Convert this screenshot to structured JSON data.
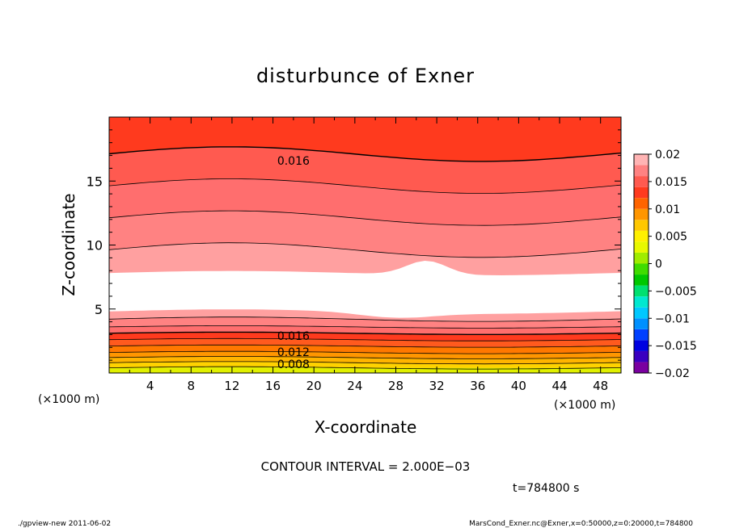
{
  "chart_data": {
    "type": "heatmap",
    "title": "disturbunce of Exner",
    "xlabel": "X-coordinate",
    "ylabel": "Z-coordinate",
    "x_unit_label_left": "(×1000 m)",
    "x_unit_label_right": "(×1000 m)",
    "xlim": [
      0,
      50
    ],
    "ylim": [
      0,
      20
    ],
    "x_ticks": [
      4,
      8,
      12,
      16,
      20,
      24,
      28,
      32,
      36,
      40,
      44,
      48
    ],
    "y_ticks": [
      5,
      10,
      15
    ],
    "contour_labels": [
      {
        "text": "0.016",
        "x": 18,
        "z": 16.6
      },
      {
        "text": "0.016",
        "x": 18,
        "z": 2.9
      },
      {
        "text": "0.012",
        "x": 18,
        "z": 1.65
      },
      {
        "text": "0.008",
        "x": 18,
        "z": 0.7
      }
    ],
    "colorbar": {
      "levels": [
        -0.02,
        -0.018,
        -0.016,
        -0.014,
        -0.012,
        -0.01,
        -0.008,
        -0.006,
        -0.004,
        -0.002,
        0,
        0.002,
        0.004,
        0.006,
        0.008,
        0.01,
        0.012,
        0.014,
        0.016,
        0.018,
        0.02
      ],
      "tick_labels": [
        "0.02",
        "0.015",
        "0.01",
        "0.005",
        "0",
        "−0.005",
        "−0.01",
        "−0.015",
        "−0.02"
      ],
      "colors": [
        "#7a00a0",
        "#3a00c0",
        "#0000e0",
        "#0040ff",
        "#0090ff",
        "#00c8ff",
        "#00e8d0",
        "#00e070",
        "#00c800",
        "#40dc00",
        "#a0ec00",
        "#e8f800",
        "#fff000",
        "#ffc800",
        "#ff9600",
        "#ff6400",
        "#ff3a1e",
        "#ff5a50",
        "#ff8282",
        "#ffb4b4"
      ]
    },
    "bands_from_top": [
      {
        "top": 20.0,
        "color": "#ff3a1e"
      },
      {
        "top": 17.1,
        "color": "#ff5a50"
      },
      {
        "top": 14.6,
        "color": "#ff6e6e"
      },
      {
        "top": 12.1,
        "color": "#ff8282"
      },
      {
        "top": 9.6,
        "color": "#ffa0a0"
      },
      {
        "top": 7.8,
        "color": "#ffffff"
      },
      {
        "top": 4.8,
        "color": "#ffa0a0"
      },
      {
        "top": 4.2,
        "color": "#ff8282"
      },
      {
        "top": 3.6,
        "color": "#ff6e6e"
      },
      {
        "top": 3.1,
        "color": "#ff3a1e"
      },
      {
        "top": 2.6,
        "color": "#ff5a1e"
      },
      {
        "top": 2.1,
        "color": "#ff7800"
      },
      {
        "top": 1.6,
        "color": "#ff9600"
      },
      {
        "top": 1.2,
        "color": "#ffb400"
      },
      {
        "top": 0.8,
        "color": "#ffd200"
      },
      {
        "top": 0.4,
        "color": "#f0f000"
      }
    ]
  },
  "contour_interval": "CONTOUR INTERVAL = 2.000E−03",
  "time_label": "t=784800 s",
  "footer_left": "./gpview-new   2011-06-02",
  "footer_right": "MarsCond_Exner.nc@Exner,x=0:50000,z=0:20000,t=784800"
}
